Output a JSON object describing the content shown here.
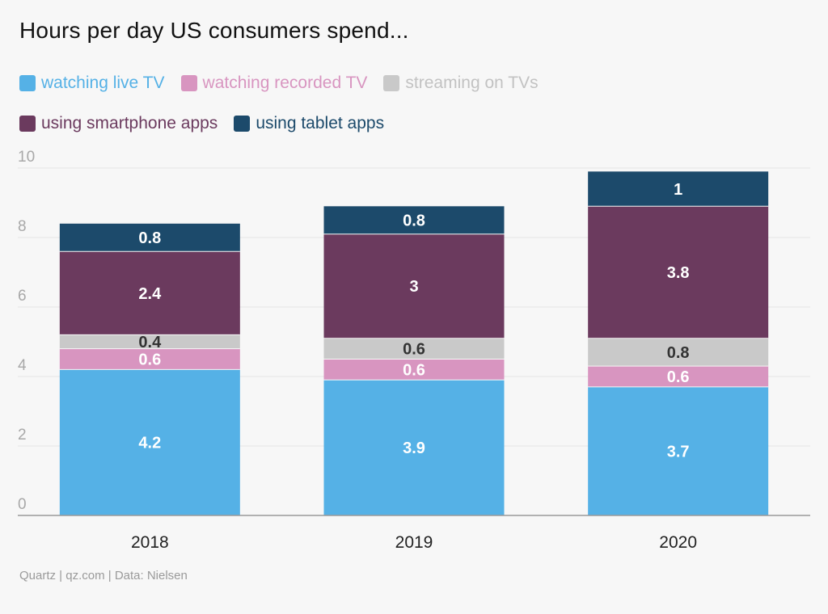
{
  "chart_data": {
    "type": "bar",
    "stacked": true,
    "title": "Hours per day US consumers spend...",
    "source": "Quartz | qz.com | Data: Nielsen",
    "categories": [
      "2018",
      "2019",
      "2020"
    ],
    "ylim": [
      0,
      10
    ],
    "yticks": [
      0,
      2,
      4,
      6,
      8,
      10
    ],
    "grid": true,
    "legend_position": "top",
    "series": [
      {
        "name": "watching live TV",
        "values": [
          4.2,
          3.9,
          3.7
        ],
        "labels": [
          "4.2",
          "3.9",
          "3.7"
        ],
        "color": "#55b1e6",
        "label_color": "#ffffff"
      },
      {
        "name": "watching recorded TV",
        "values": [
          0.6,
          0.6,
          0.6
        ],
        "labels": [
          "0.6",
          "0.6",
          "0.6"
        ],
        "color": "#d895c0",
        "label_color": "#ffffff"
      },
      {
        "name": "streaming on TVs",
        "values": [
          0.4,
          0.6,
          0.8
        ],
        "labels": [
          "0.4",
          "0.6",
          "0.8"
        ],
        "color": "#c9c9c9",
        "label_color": "#333333"
      },
      {
        "name": "using smartphone apps",
        "values": [
          2.4,
          3,
          3.8
        ],
        "labels": [
          "2.4",
          "3",
          "3.8"
        ],
        "color": "#6b3a5e",
        "label_color": "#ffffff"
      },
      {
        "name": "using tablet apps",
        "values": [
          0.8,
          0.8,
          1
        ],
        "labels": [
          "0.8",
          "0.8",
          "1"
        ],
        "color": "#1c4a6b",
        "label_color": "#ffffff"
      }
    ]
  }
}
